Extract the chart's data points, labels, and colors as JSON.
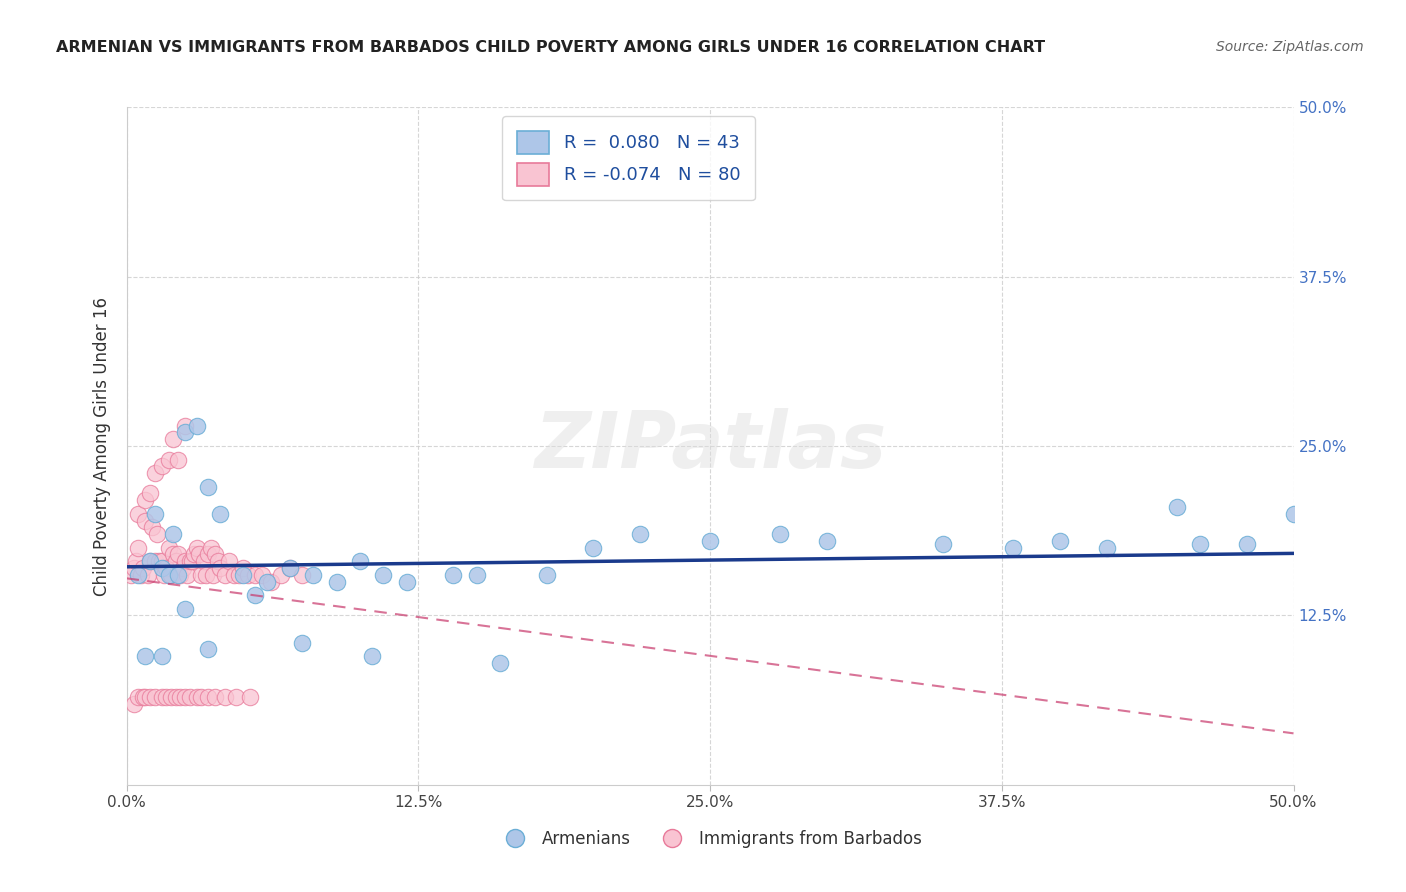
{
  "title": "ARMENIAN VS IMMIGRANTS FROM BARBADOS CHILD POVERTY AMONG GIRLS UNDER 16 CORRELATION CHART",
  "source": "Source: ZipAtlas.com",
  "ylabel": "Child Poverty Among Girls Under 16",
  "xlim": [
    0.0,
    0.5
  ],
  "ylim": [
    0.0,
    0.5
  ],
  "xtick_vals": [
    0.0,
    0.125,
    0.25,
    0.375,
    0.5
  ],
  "ytick_vals": [
    0.125,
    0.25,
    0.375,
    0.5
  ],
  "armenian_R": 0.08,
  "armenian_N": 43,
  "barbados_R": -0.074,
  "barbados_N": 80,
  "blue_face": "#aec6e8",
  "blue_edge": "#6baed6",
  "pink_face": "#f9c4d2",
  "pink_edge": "#e87a9a",
  "trend_blue": "#1a3a8c",
  "trend_pink_solid": "#c8386b",
  "watermark": "ZIPatlas",
  "armenian_x": [
    0.005,
    0.01,
    0.012,
    0.015,
    0.018,
    0.02,
    0.022,
    0.025,
    0.03,
    0.035,
    0.04,
    0.05,
    0.06,
    0.07,
    0.08,
    0.09,
    0.1,
    0.11,
    0.12,
    0.14,
    0.15,
    0.18,
    0.2,
    0.22,
    0.25,
    0.28,
    0.3,
    0.35,
    0.38,
    0.4,
    0.42,
    0.45,
    0.46,
    0.48,
    0.5,
    0.008,
    0.015,
    0.025,
    0.035,
    0.055,
    0.075,
    0.105,
    0.16
  ],
  "armenian_y": [
    0.155,
    0.165,
    0.2,
    0.16,
    0.155,
    0.185,
    0.155,
    0.26,
    0.265,
    0.22,
    0.2,
    0.155,
    0.15,
    0.16,
    0.155,
    0.15,
    0.165,
    0.155,
    0.15,
    0.155,
    0.155,
    0.155,
    0.175,
    0.185,
    0.18,
    0.185,
    0.18,
    0.178,
    0.175,
    0.18,
    0.175,
    0.205,
    0.178,
    0.178,
    0.2,
    0.095,
    0.095,
    0.13,
    0.1,
    0.14,
    0.105,
    0.095,
    0.09
  ],
  "barbados_x": [
    0.002,
    0.003,
    0.004,
    0.005,
    0.005,
    0.006,
    0.007,
    0.008,
    0.008,
    0.009,
    0.01,
    0.01,
    0.011,
    0.012,
    0.012,
    0.013,
    0.014,
    0.015,
    0.015,
    0.016,
    0.017,
    0.018,
    0.018,
    0.019,
    0.02,
    0.02,
    0.021,
    0.022,
    0.022,
    0.023,
    0.024,
    0.025,
    0.025,
    0.026,
    0.027,
    0.028,
    0.029,
    0.03,
    0.031,
    0.032,
    0.033,
    0.034,
    0.035,
    0.036,
    0.037,
    0.038,
    0.039,
    0.04,
    0.042,
    0.044,
    0.046,
    0.048,
    0.05,
    0.052,
    0.055,
    0.058,
    0.062,
    0.066,
    0.07,
    0.075,
    0.003,
    0.005,
    0.007,
    0.008,
    0.01,
    0.012,
    0.015,
    0.017,
    0.019,
    0.021,
    0.023,
    0.025,
    0.027,
    0.03,
    0.032,
    0.035,
    0.038,
    0.042,
    0.047,
    0.053
  ],
  "barbados_y": [
    0.155,
    0.16,
    0.165,
    0.175,
    0.2,
    0.155,
    0.16,
    0.21,
    0.195,
    0.155,
    0.215,
    0.165,
    0.19,
    0.165,
    0.23,
    0.185,
    0.165,
    0.165,
    0.235,
    0.155,
    0.16,
    0.175,
    0.24,
    0.155,
    0.17,
    0.255,
    0.165,
    0.17,
    0.24,
    0.155,
    0.16,
    0.165,
    0.265,
    0.155,
    0.165,
    0.165,
    0.17,
    0.175,
    0.17,
    0.155,
    0.165,
    0.155,
    0.17,
    0.175,
    0.155,
    0.17,
    0.165,
    0.16,
    0.155,
    0.165,
    0.155,
    0.155,
    0.16,
    0.155,
    0.155,
    0.155,
    0.15,
    0.155,
    0.16,
    0.155,
    0.06,
    0.065,
    0.065,
    0.065,
    0.065,
    0.065,
    0.065,
    0.065,
    0.065,
    0.065,
    0.065,
    0.065,
    0.065,
    0.065,
    0.065,
    0.065,
    0.065,
    0.065,
    0.065,
    0.065
  ]
}
